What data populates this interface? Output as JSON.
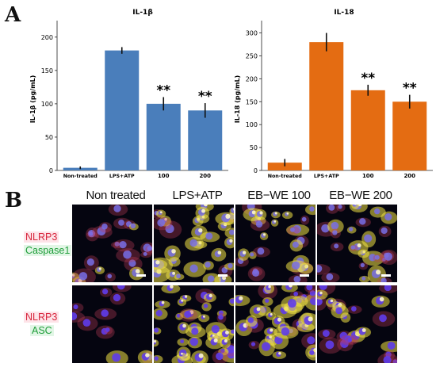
{
  "panel_labels": {
    "a": "A",
    "b": "B"
  },
  "chart_data": [
    {
      "type": "bar",
      "title": "IL-1β",
      "ylabel": "IL-1β (pg/mL)",
      "xlabel": "",
      "categories": [
        "Non-treated",
        "LPS+ATP",
        "100",
        "200"
      ],
      "values": [
        4,
        180,
        100,
        90
      ],
      "errors": [
        2,
        5,
        10,
        11
      ],
      "significance": [
        "",
        "",
        "**",
        "**"
      ],
      "ylim": [
        0,
        220
      ],
      "yticks": [
        0,
        50,
        100,
        150,
        200
      ],
      "grid": false,
      "color": "#4a7ebb"
    },
    {
      "type": "bar",
      "title": "IL-18",
      "ylabel": "IL-18 (pg/mL)",
      "xlabel": "",
      "categories": [
        "Non-treated",
        "LPS+ATP",
        "100",
        "200"
      ],
      "values": [
        17,
        280,
        175,
        150
      ],
      "errors": [
        8,
        20,
        12,
        15
      ],
      "significance": [
        "",
        "",
        "**",
        "**"
      ],
      "ylim": [
        0,
        320
      ],
      "yticks": [
        0,
        50,
        100,
        150,
        200,
        250,
        300
      ],
      "grid": false,
      "color": "#e46c12"
    }
  ],
  "microscopy": {
    "columns": [
      "Non treated",
      "LPS+ATP",
      "EB−WE 100",
      "EB−WE 200"
    ],
    "rows": [
      {
        "label_top": "NLRP3",
        "label_bottom": "Caspase1"
      },
      {
        "label_top": "NLRP3",
        "label_bottom": "ASC"
      }
    ]
  }
}
